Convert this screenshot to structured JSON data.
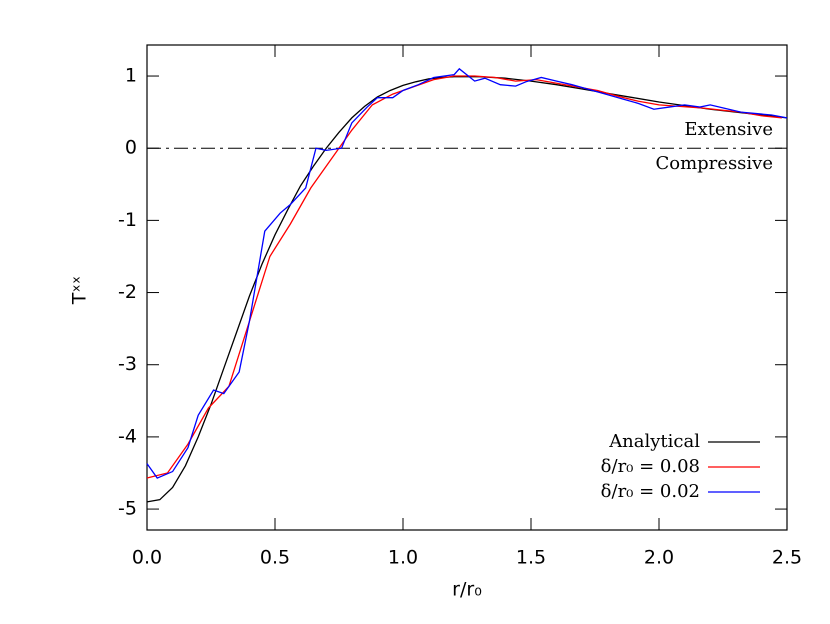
{
  "chart_data": {
    "type": "line",
    "x_label": "r/r₀",
    "y_label": "Tˣˣ",
    "xlim": [
      0,
      2.5
    ],
    "ylim": [
      -5.29,
      1.43
    ],
    "xticks": [
      {
        "value": 0,
        "label": "0.0"
      },
      0.5,
      {
        "value": 1,
        "label": "1.0"
      },
      1.5,
      {
        "value": 2,
        "label": "2.0"
      },
      2.5
    ],
    "yticks": [
      -5,
      -4,
      -3,
      -2,
      -1,
      0,
      1
    ],
    "reference_line": 0,
    "annotations": [
      "Extensive",
      "Compressive"
    ],
    "legend": "lower right",
    "series": [
      {
        "name": "Analytical",
        "color": "#000000",
        "x": [
          0,
          0.05,
          0.1,
          0.15,
          0.2,
          0.25,
          0.3,
          0.35,
          0.4,
          0.45,
          0.5,
          0.55,
          0.6,
          0.65,
          0.7,
          0.75,
          0.8,
          0.85,
          0.9,
          0.95,
          1.0,
          1.05,
          1.1,
          1.15,
          1.2,
          1.3,
          1.4,
          1.5,
          1.6,
          1.7,
          1.8,
          1.9,
          2.0,
          2.1,
          2.2,
          2.3,
          2.4,
          2.5
        ],
        "values": [
          -4.9,
          -4.87,
          -4.7,
          -4.4,
          -4.0,
          -3.55,
          -3.05,
          -2.55,
          -2.05,
          -1.6,
          -1.2,
          -0.85,
          -0.52,
          -0.25,
          0.0,
          0.22,
          0.42,
          0.58,
          0.71,
          0.8,
          0.87,
          0.92,
          0.96,
          0.98,
          0.99,
          0.99,
          0.97,
          0.93,
          0.88,
          0.82,
          0.76,
          0.7,
          0.64,
          0.59,
          0.54,
          0.5,
          0.46,
          0.42
        ]
      },
      {
        "name": "δ/r₀ = 0.08",
        "color": "#ff0000",
        "x": [
          0,
          0.08,
          0.16,
          0.24,
          0.32,
          0.4,
          0.48,
          0.56,
          0.64,
          0.72,
          0.8,
          0.88,
          0.96,
          1.04,
          1.12,
          1.2,
          1.28,
          1.36,
          1.44,
          1.52,
          1.6,
          1.68,
          1.76,
          1.84,
          1.92,
          2.0,
          2.08,
          2.16,
          2.24,
          2.32,
          2.4,
          2.48
        ],
        "values": [
          -4.57,
          -4.5,
          -4.1,
          -3.6,
          -3.3,
          -2.4,
          -1.5,
          -1.05,
          -0.55,
          -0.15,
          0.25,
          0.6,
          0.75,
          0.85,
          0.95,
          1.0,
          1.0,
          0.98,
          0.93,
          0.95,
          0.9,
          0.85,
          0.8,
          0.72,
          0.65,
          0.6,
          0.58,
          0.56,
          0.53,
          0.5,
          0.45,
          0.42
        ]
      },
      {
        "name": "δ/r₀ = 0.02",
        "color": "#0000ff",
        "x": [
          0,
          0.04,
          0.1,
          0.16,
          0.2,
          0.26,
          0.3,
          0.36,
          0.4,
          0.46,
          0.52,
          0.56,
          0.62,
          0.66,
          0.7,
          0.76,
          0.8,
          0.86,
          0.9,
          0.96,
          1.0,
          1.06,
          1.12,
          1.2,
          1.22,
          1.28,
          1.32,
          1.38,
          1.44,
          1.48,
          1.54,
          1.6,
          1.66,
          1.72,
          1.8,
          1.86,
          1.92,
          1.98,
          2.04,
          2.1,
          2.16,
          2.2,
          2.26,
          2.32,
          2.38,
          2.44,
          2.5
        ],
        "values": [
          -4.37,
          -4.57,
          -4.48,
          -4.15,
          -3.7,
          -3.35,
          -3.4,
          -3.1,
          -2.4,
          -1.15,
          -0.9,
          -0.78,
          -0.55,
          0.0,
          -0.03,
          0.0,
          0.35,
          0.57,
          0.7,
          0.7,
          0.8,
          0.88,
          0.98,
          1.02,
          1.1,
          0.93,
          0.97,
          0.88,
          0.86,
          0.92,
          0.98,
          0.93,
          0.88,
          0.82,
          0.74,
          0.68,
          0.62,
          0.54,
          0.57,
          0.6,
          0.57,
          0.6,
          0.55,
          0.5,
          0.48,
          0.46,
          0.42
        ]
      }
    ]
  }
}
